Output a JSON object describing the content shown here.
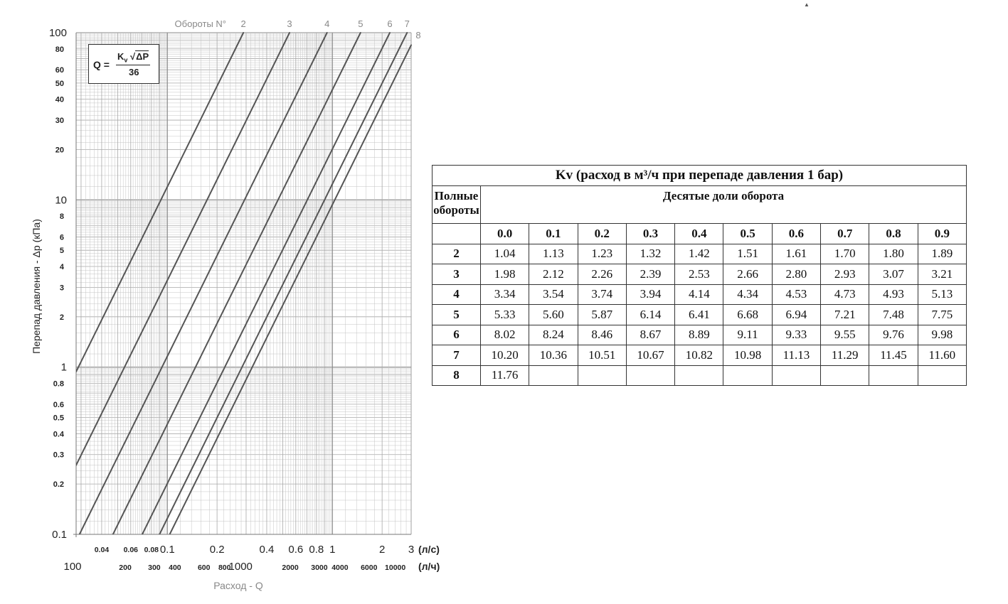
{
  "chart_data": {
    "type": "line",
    "xscale": "log",
    "yscale": "log",
    "xlim": [
      0.028,
      3
    ],
    "ylim": [
      0.1,
      100
    ],
    "grid": true,
    "top_axis_label": "Обороты N°",
    "ylabel": "Перепад давления  - Δp (кПа)",
    "xlabel": "Расход -   Q",
    "formula": {
      "lhs": "Q =",
      "kv": "K",
      "kv_sub": "v",
      "root": "√",
      "dp": "ΔP",
      "den": "36"
    },
    "y_ticks": [
      {
        "v": 100,
        "t": "100",
        "major": true
      },
      {
        "v": 80,
        "t": "80"
      },
      {
        "v": 60,
        "t": "60"
      },
      {
        "v": 50,
        "t": "50"
      },
      {
        "v": 40,
        "t": "40"
      },
      {
        "v": 30,
        "t": "30"
      },
      {
        "v": 20,
        "t": "20"
      },
      {
        "v": 10,
        "t": "10",
        "major": true
      },
      {
        "v": 8,
        "t": "8"
      },
      {
        "v": 6,
        "t": "6"
      },
      {
        "v": 5,
        "t": "5"
      },
      {
        "v": 4,
        "t": "4"
      },
      {
        "v": 3,
        "t": "3"
      },
      {
        "v": 2,
        "t": "2"
      },
      {
        "v": 1,
        "t": "1",
        "major": true
      },
      {
        "v": 0.8,
        "t": "0.8"
      },
      {
        "v": 0.6,
        "t": "0.6"
      },
      {
        "v": 0.5,
        "t": "0.5"
      },
      {
        "v": 0.4,
        "t": "0.4"
      },
      {
        "v": 0.3,
        "t": "0.3"
      },
      {
        "v": 0.2,
        "t": "0.2"
      },
      {
        "v": 0.1,
        "t": "0.1",
        "major": true
      }
    ],
    "x_ticks_ls": [
      {
        "v": 0.04,
        "t": "0.04",
        "size": "small"
      },
      {
        "v": 0.06,
        "t": "0.06",
        "size": "small"
      },
      {
        "v": 0.08,
        "t": "0.08",
        "size": "small"
      },
      {
        "v": 0.1,
        "t": "0.1",
        "size": "big"
      },
      {
        "v": 0.2,
        "t": "0.2",
        "size": "big"
      },
      {
        "v": 0.4,
        "t": "0.4",
        "size": "big"
      },
      {
        "v": 0.6,
        "t": "0.6",
        "size": "big"
      },
      {
        "v": 0.8,
        "t": "0.8",
        "size": "big"
      },
      {
        "v": 1,
        "t": "1",
        "size": "big"
      },
      {
        "v": 2,
        "t": "2",
        "size": "big"
      },
      {
        "v": 3,
        "t": "3",
        "size": "big"
      }
    ],
    "x_unit_ls": "(л/с)",
    "x_ticks_lh": [
      {
        "v": 100,
        "t": "100",
        "size": "big"
      },
      {
        "v": 200,
        "t": "200",
        "size": "small"
      },
      {
        "v": 300,
        "t": "300",
        "size": "small"
      },
      {
        "v": 400,
        "t": "400",
        "size": "small"
      },
      {
        "v": 600,
        "t": "600",
        "size": "small"
      },
      {
        "v": 800,
        "t": "800",
        "size": "small"
      },
      {
        "v": 1000,
        "t": "1000",
        "size": "big"
      },
      {
        "v": 2000,
        "t": "2000",
        "size": "small"
      },
      {
        "v": 3000,
        "t": "3000",
        "size": "small"
      },
      {
        "v": 4000,
        "t": "4000",
        "size": "small"
      },
      {
        "v": 6000,
        "t": "6000",
        "size": "small"
      },
      {
        "v": 10000,
        "t": "10000",
        "size": "small"
      }
    ],
    "x_unit_lh": "(л/ч)",
    "series": [
      {
        "name": "2",
        "kv": 1.04
      },
      {
        "name": "3",
        "kv": 1.98
      },
      {
        "name": "4",
        "kv": 3.34
      },
      {
        "name": "5",
        "kv": 5.33
      },
      {
        "name": "6",
        "kv": 8.02
      },
      {
        "name": "7",
        "kv": 10.2
      },
      {
        "name": "8",
        "kv": 11.76
      }
    ],
    "colors": {
      "line": "#555555",
      "grid": "#c4c4c4",
      "grid_major": "#8a8a8a",
      "text": "#222222",
      "label_gray": "#888888"
    }
  },
  "kv_table": {
    "title": "Kv (расход в м³/ч при перепаде давления 1 бар)",
    "full_turns_header": "Полные обороты",
    "tenths_header": "Десятые доли оборота",
    "columns": [
      "0.0",
      "0.1",
      "0.2",
      "0.3",
      "0.4",
      "0.5",
      "0.6",
      "0.7",
      "0.8",
      "0.9"
    ],
    "rows": [
      {
        "turn": "2",
        "values": [
          "1.04",
          "1.13",
          "1.23",
          "1.32",
          "1.42",
          "1.51",
          "1.61",
          "1.70",
          "1.80",
          "1.89"
        ]
      },
      {
        "turn": "3",
        "values": [
          "1.98",
          "2.12",
          "2.26",
          "2.39",
          "2.53",
          "2.66",
          "2.80",
          "2.93",
          "3.07",
          "3.21"
        ]
      },
      {
        "turn": "4",
        "values": [
          "3.34",
          "3.54",
          "3.74",
          "3.94",
          "4.14",
          "4.34",
          "4.53",
          "4.73",
          "4.93",
          "5.13"
        ]
      },
      {
        "turn": "5",
        "values": [
          "5.33",
          "5.60",
          "5.87",
          "6.14",
          "6.41",
          "6.68",
          "6.94",
          "7.21",
          "7.48",
          "7.75"
        ]
      },
      {
        "turn": "6",
        "values": [
          "8.02",
          "8.24",
          "8.46",
          "8.67",
          "8.89",
          "9.11",
          "9.33",
          "9.55",
          "9.76",
          "9.98"
        ]
      },
      {
        "turn": "7",
        "values": [
          "10.20",
          "10.36",
          "10.51",
          "10.67",
          "10.82",
          "10.98",
          "11.13",
          "11.29",
          "11.45",
          "11.60"
        ]
      },
      {
        "turn": "8",
        "values": [
          "11.76",
          "",
          "",
          "",
          "",
          "",
          "",
          "",
          "",
          ""
        ]
      }
    ]
  }
}
